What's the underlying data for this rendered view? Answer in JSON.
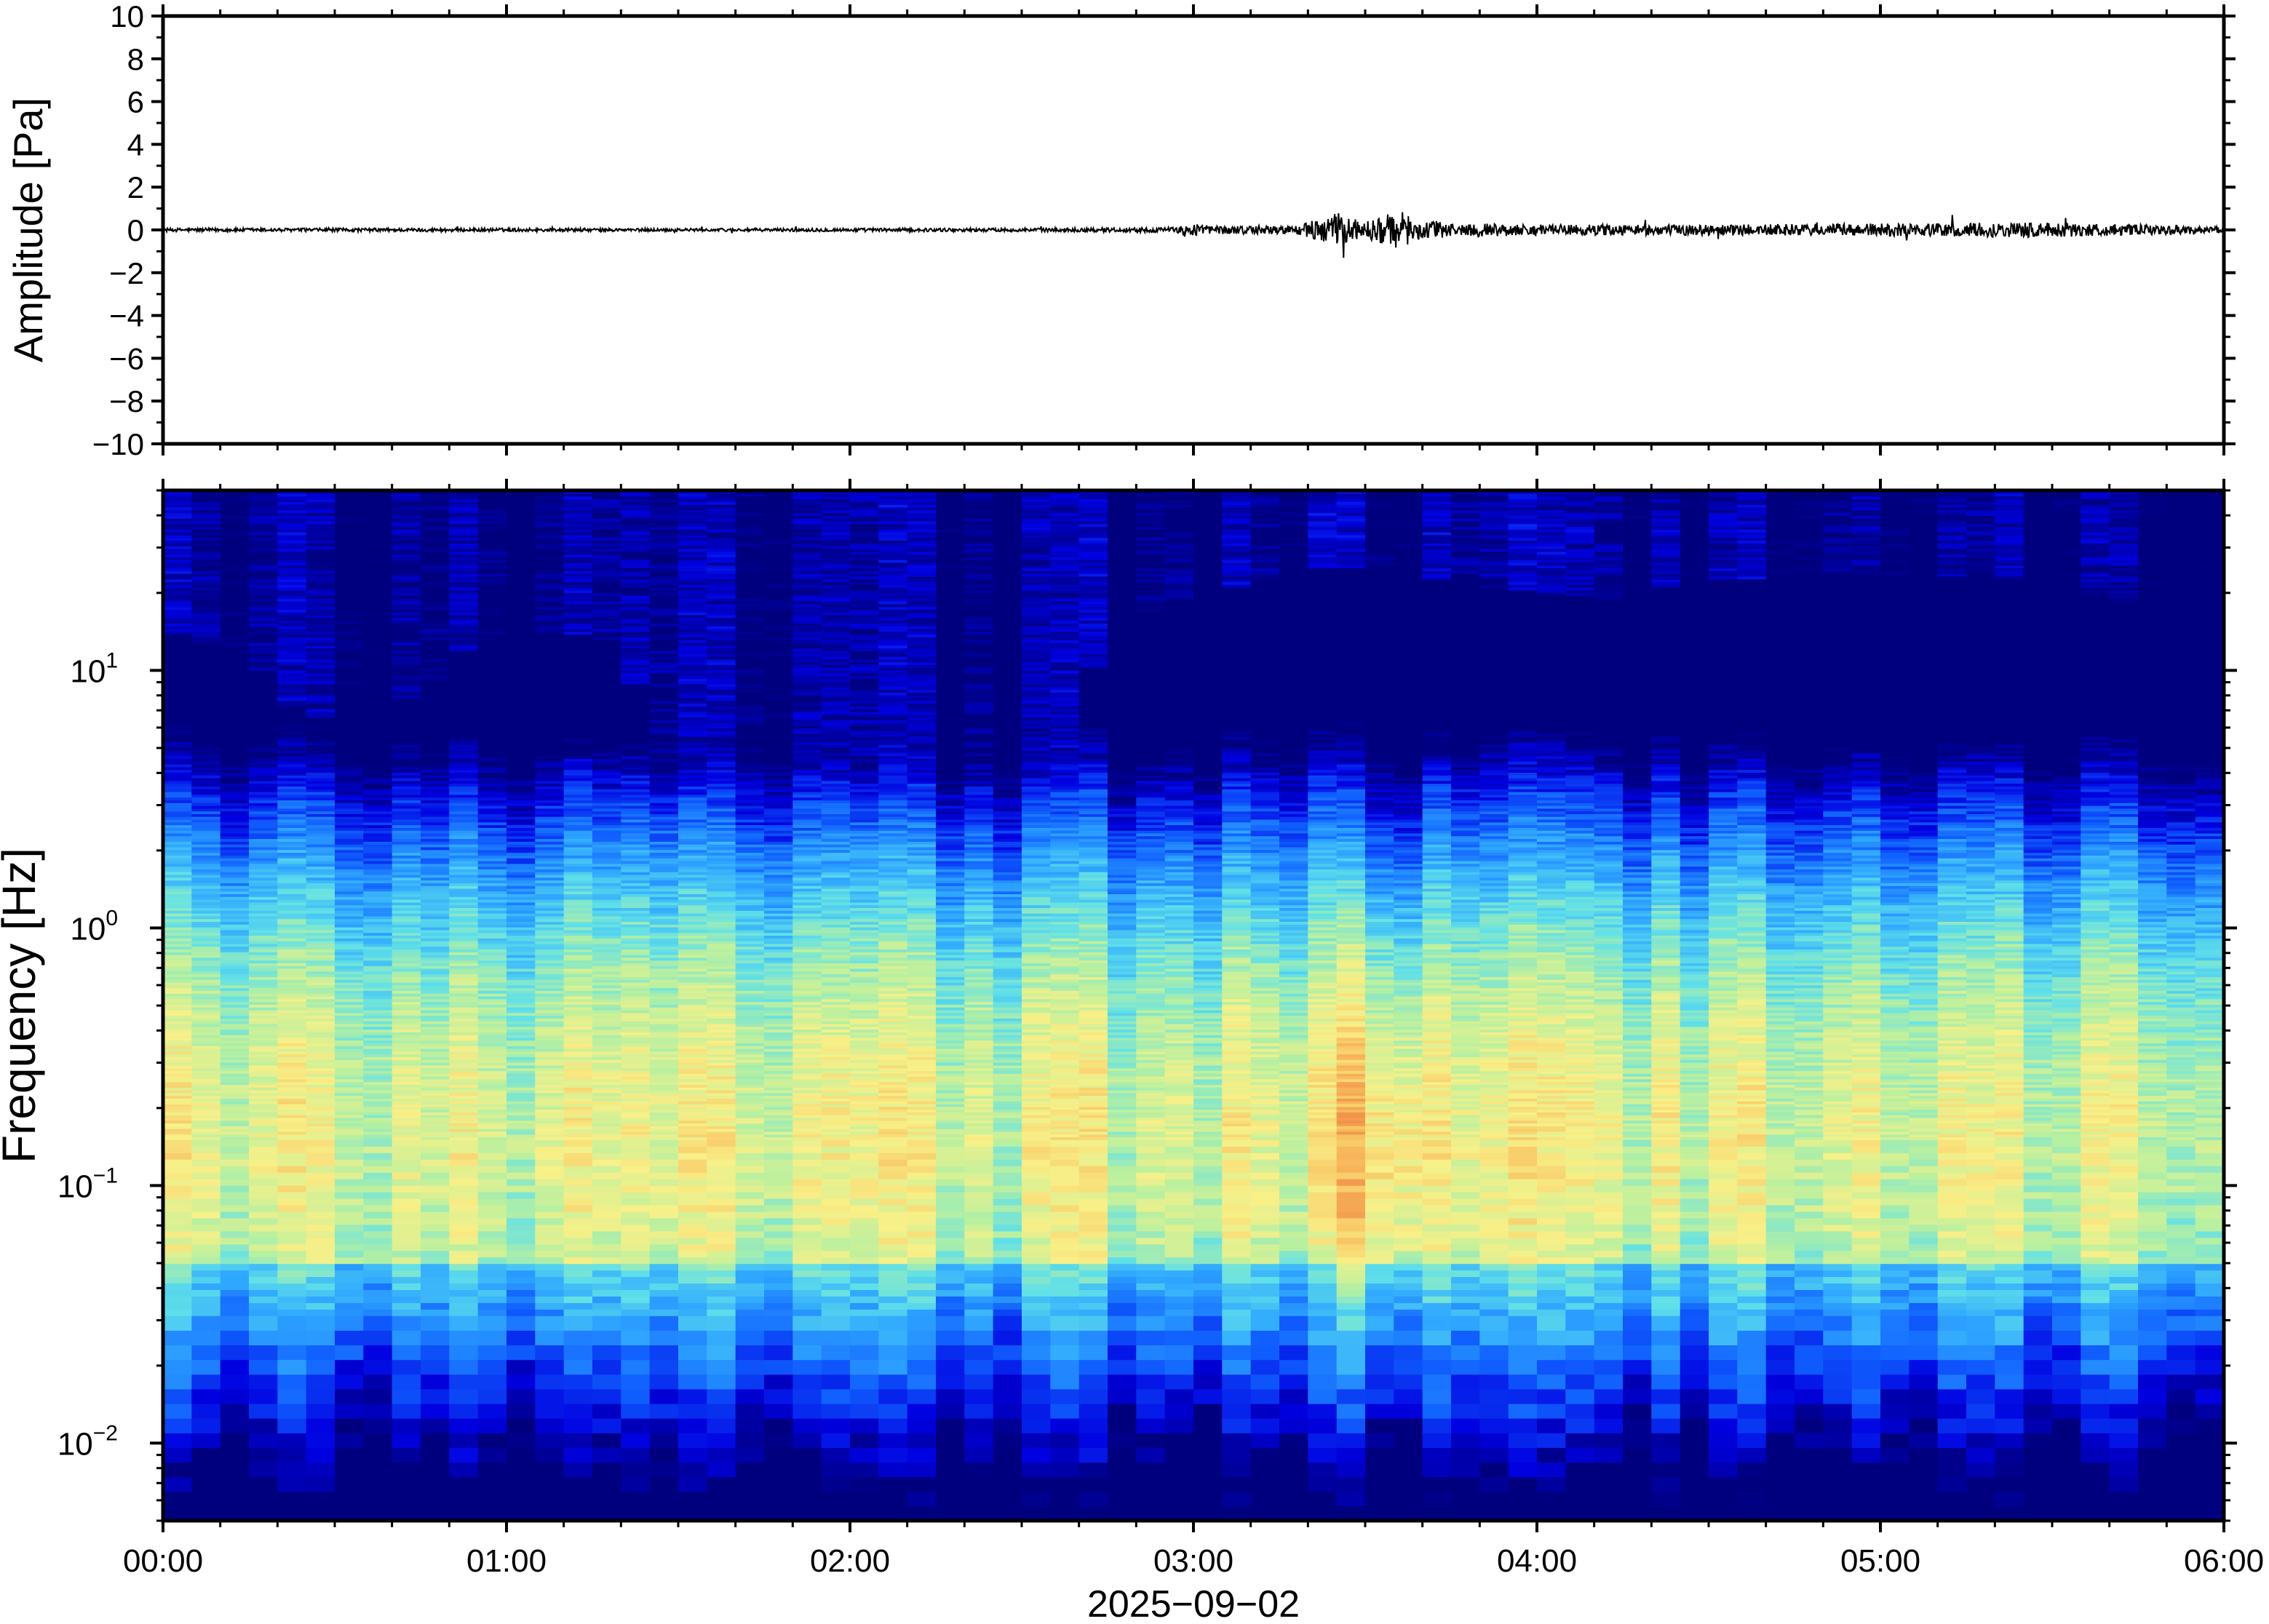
{
  "chart_data": [
    {
      "type": "line",
      "panel": "waveform",
      "title": "",
      "ylabel": "Amplitude [Pa]",
      "xlabel": "",
      "ylim": [
        -10,
        10
      ],
      "y_ticks": [
        {
          "value": 10,
          "label": "10"
        },
        {
          "value": 8,
          "label": "8"
        },
        {
          "value": 6,
          "label": "6"
        },
        {
          "value": 4,
          "label": "4"
        },
        {
          "value": 2,
          "label": "2"
        },
        {
          "value": 0,
          "label": "0"
        },
        {
          "value": -2,
          "label": "−2"
        },
        {
          "value": -4,
          "label": "−4"
        },
        {
          "value": -6,
          "label": "−6"
        },
        {
          "value": -8,
          "label": "−8"
        },
        {
          "value": -10,
          "label": "−10"
        }
      ],
      "series": [
        {
          "color": "#000000",
          "x_unit": "hours since 2025-09-02 00:00",
          "envelope_x": [
            0,
            0.5,
            1.0,
            1.5,
            2.0,
            2.5,
            2.95,
            3.0,
            3.05,
            3.3,
            3.42,
            3.5,
            3.6,
            3.65,
            3.75,
            4.0,
            4.5,
            5.0,
            5.5,
            5.75,
            6.0
          ],
          "envelope_amplitude": [
            0.08,
            0.08,
            0.08,
            0.07,
            0.08,
            0.08,
            0.12,
            0.35,
            0.2,
            0.2,
            0.8,
            0.4,
            0.9,
            0.5,
            0.35,
            0.25,
            0.25,
            0.3,
            0.35,
            0.25,
            0.15
          ]
        }
      ]
    },
    {
      "type": "heatmap",
      "panel": "spectrogram",
      "title": "",
      "ylabel": "Frequency [Hz]",
      "xlabel": "2025−09−02",
      "y_scale": "log",
      "ylim": [
        0.005,
        50
      ],
      "y_ticks": [
        {
          "value": 10,
          "base": "10",
          "exp": "1"
        },
        {
          "value": 1,
          "base": "10",
          "exp": "0"
        },
        {
          "value": 0.1,
          "base": "10",
          "exp": "−1"
        },
        {
          "value": 0.01,
          "base": "10",
          "exp": "−2"
        }
      ],
      "x_ticks": [
        "00:00",
        "01:00",
        "02:00",
        "03:00",
        "04:00",
        "05:00",
        "06:00"
      ],
      "xlim_hours": [
        0,
        6
      ],
      "colormap": [
        "#00007f",
        "#0000e0",
        "#1060ff",
        "#30a8ff",
        "#60e0e8",
        "#b8f0a0",
        "#f8f088",
        "#f8c060",
        "#f08040",
        "#d01010"
      ],
      "upper_energy_edge": {
        "x_hours": [
          0,
          0.25,
          0.4,
          0.6,
          0.75,
          0.9,
          1.1,
          1.35,
          1.4,
          1.7,
          2.0,
          2.3,
          2.5,
          2.65,
          2.75,
          3.0,
          3.4,
          3.6,
          3.9,
          4.2,
          4.5,
          5.0,
          5.5,
          5.8,
          6.0
        ],
        "freq_hz": [
          9,
          7,
          4,
          4.5,
          5,
          8,
          9,
          8,
          3,
          3,
          3,
          2.5,
          3,
          3,
          9,
          12,
          16,
          15,
          13,
          12,
          14,
          15,
          14,
          10,
          7
        ]
      },
      "peak_band_hz": [
        0.08,
        0.3
      ],
      "notes_peak_intensity_hours": [
        3.4,
        3.7
      ]
    }
  ]
}
